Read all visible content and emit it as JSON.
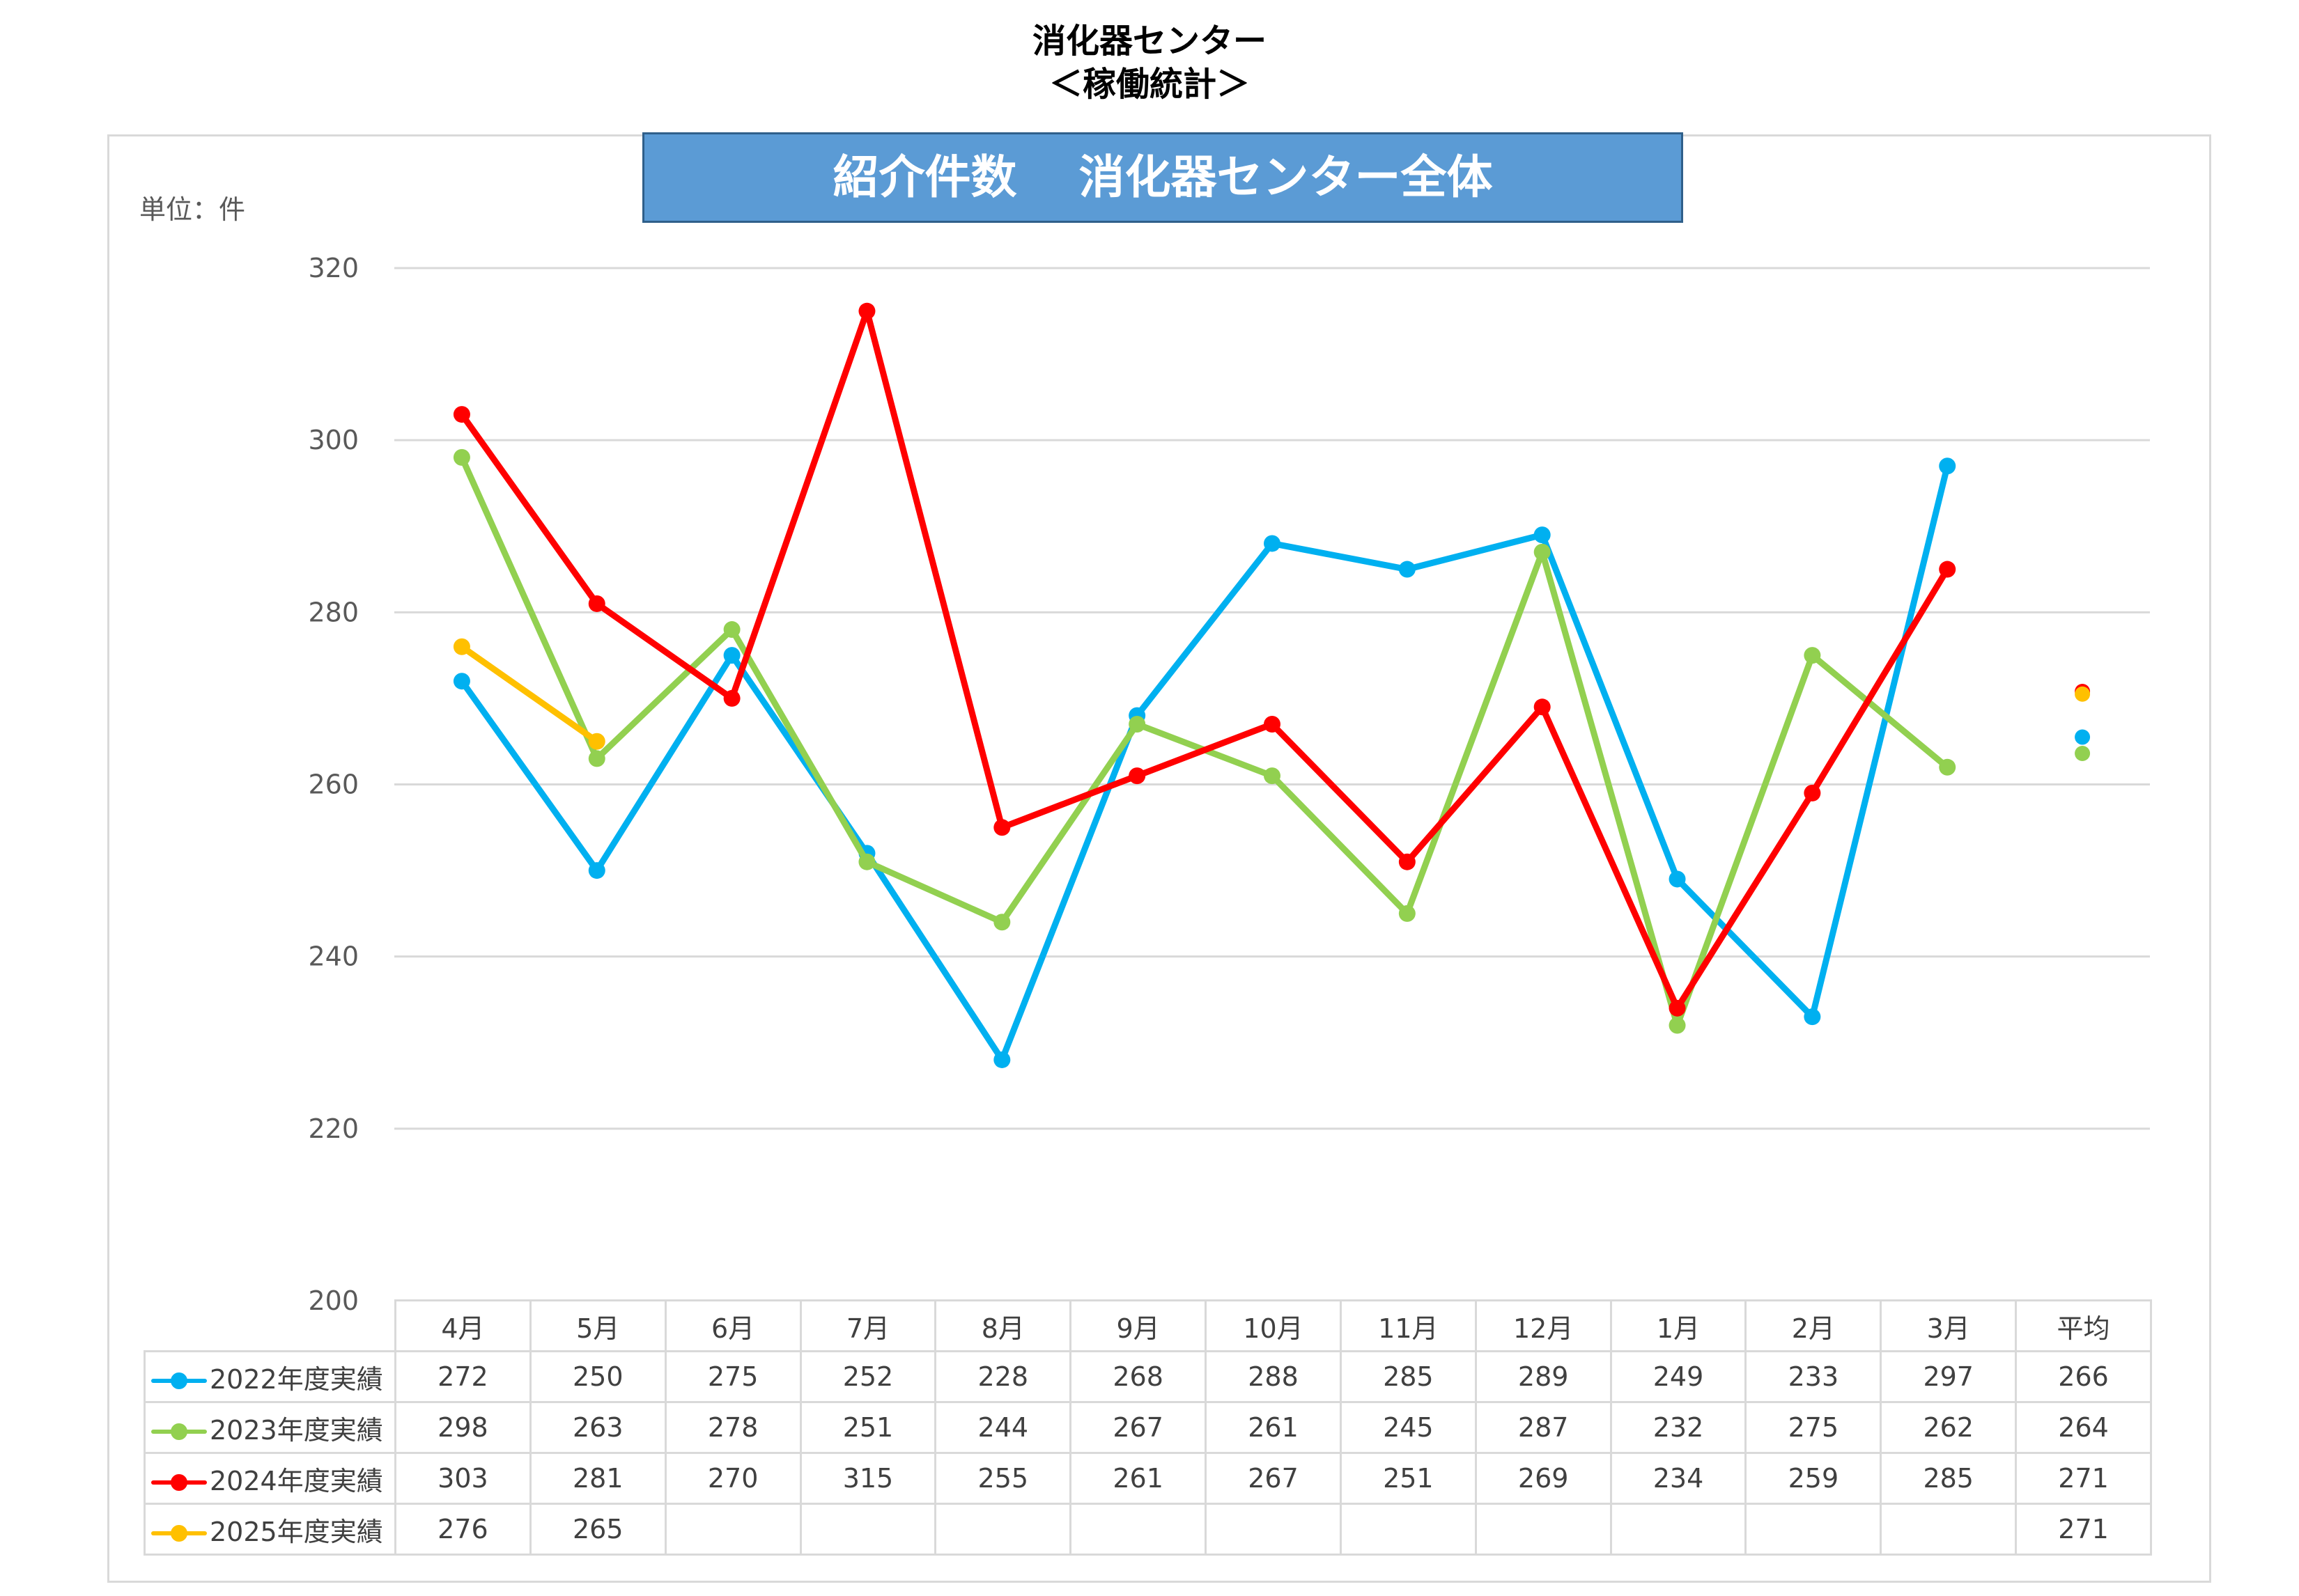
{
  "page": {
    "heading_line1": "消化器センター",
    "heading_line2": "＜稼働統計＞"
  },
  "chart_data": {
    "type": "line",
    "title": "紹介件数　 消化器センター全体",
    "unit_label": "単位：件",
    "categories": [
      "4月",
      "5月",
      "6月",
      "7月",
      "8月",
      "9月",
      "10月",
      "11月",
      "12月",
      "1月",
      "2月",
      "3月"
    ],
    "average_label": "平均",
    "ylim": [
      200,
      320
    ],
    "yticks": [
      200,
      220,
      240,
      260,
      280,
      300,
      320
    ],
    "grid": true,
    "series": [
      {
        "name": "2022年度実績",
        "color": "#00b0f0",
        "values": [
          272,
          250,
          275,
          252,
          228,
          268,
          288,
          285,
          289,
          249,
          233,
          297
        ],
        "average": 266,
        "average_plotted": 265.5
      },
      {
        "name": "2023年度実績",
        "color": "#92d050",
        "values": [
          298,
          263,
          278,
          251,
          244,
          267,
          261,
          245,
          287,
          232,
          275,
          262
        ],
        "average": 264,
        "average_plotted": 263.6
      },
      {
        "name": "2024年度実績",
        "color": "#ff0000",
        "values": [
          303,
          281,
          270,
          315,
          255,
          261,
          267,
          251,
          269,
          234,
          259,
          285
        ],
        "average": 271,
        "average_plotted": 270.8
      },
      {
        "name": "2025年度実績",
        "color": "#ffc000",
        "values": [
          276,
          265,
          null,
          null,
          null,
          null,
          null,
          null,
          null,
          null,
          null,
          null
        ],
        "average": 271,
        "average_plotted": 270.5
      }
    ]
  }
}
